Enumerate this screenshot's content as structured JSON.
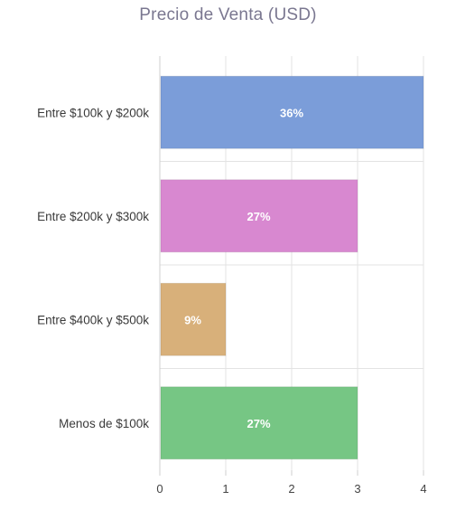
{
  "chart_data": {
    "type": "bar",
    "orientation": "horizontal",
    "title": "Precio de Venta (USD)",
    "categories": [
      "Entre $100k y $200k",
      "Entre $200k y $300k",
      "Entre $400k y $500k",
      "Menos de $100k"
    ],
    "values": [
      4,
      3,
      1,
      3
    ],
    "data_labels": [
      "36%",
      "27%",
      "9%",
      "27%"
    ],
    "colors": [
      "#7b9dd9",
      "#d888d0",
      "#d8b07a",
      "#76c684"
    ],
    "xlim": [
      0,
      4
    ],
    "xticks": [
      "0",
      "1",
      "2",
      "3",
      "4"
    ],
    "xlabel": "",
    "ylabel": "",
    "grid": true
  }
}
